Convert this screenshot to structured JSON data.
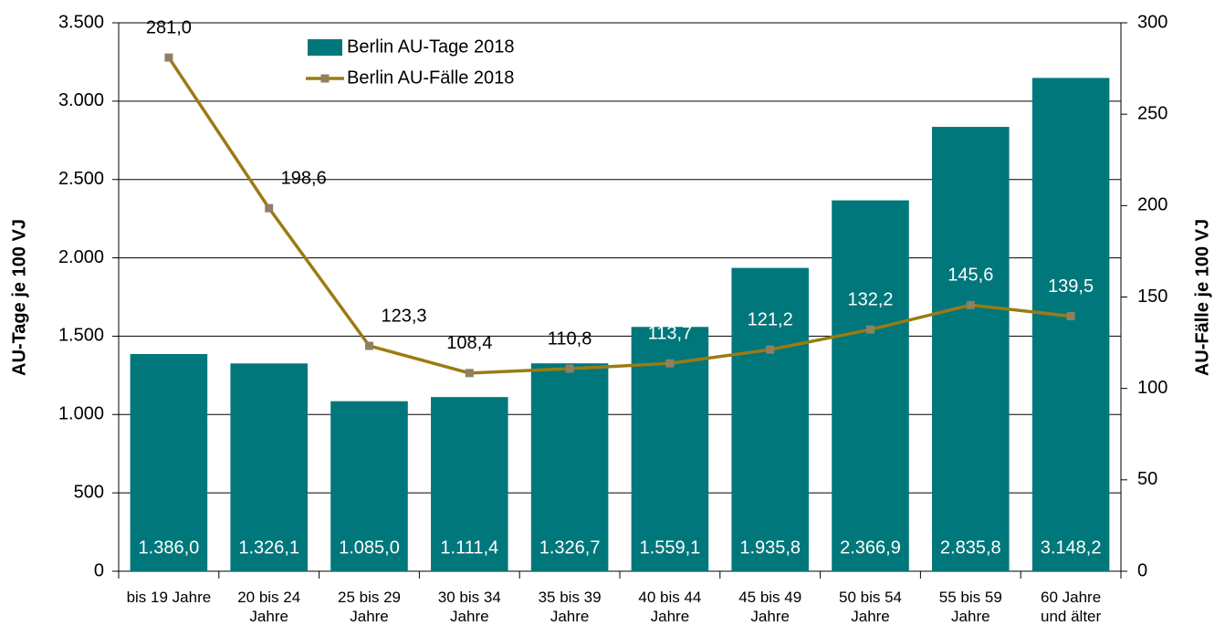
{
  "chart_data": {
    "type": "bar_line",
    "categories": [
      "bis 19 Jahre",
      "20 bis 24 Jahre",
      "25 bis 29 Jahre",
      "30 bis 34 Jahre",
      "35 bis 39 Jahre",
      "40 bis 44 Jahre",
      "45 bis 49 Jahre",
      "50 bis 54 Jahre",
      "55 bis 59 Jahre",
      "60 Jahre und älter"
    ],
    "series": [
      {
        "name": "Berlin AU-Tage 2018",
        "type": "bar",
        "color": "#00777b",
        "values": [
          1386.0,
          1326.1,
          1085.0,
          1111.4,
          1326.7,
          1559.1,
          1935.8,
          2366.9,
          2835.8,
          3148.2
        ],
        "value_labels": [
          "1.386,0",
          "1.326,1",
          "1.085,0",
          "1.111,4",
          "1.326,7",
          "1.559,1",
          "1.935,8",
          "2.366,9",
          "2.835,8",
          "3.148,2"
        ]
      },
      {
        "name": "Berlin AU-Fälle 2018",
        "type": "line",
        "axis": "y2",
        "color": "#9b7b12",
        "marker_color": "#8f8060",
        "values": [
          281.0,
          198.6,
          123.3,
          108.4,
          110.8,
          113.7,
          121.2,
          132.2,
          145.6,
          139.5
        ],
        "value_labels": [
          "281,0",
          "198,6",
          "123,3",
          "108,4",
          "110,8",
          "113,7",
          "121,2",
          "132,2",
          "145,6",
          "139,5"
        ]
      }
    ],
    "ylabel": "AU-Tage je 100 VJ",
    "y2label": "AU-Fälle je 100 VJ",
    "ylim": [
      0,
      3500
    ],
    "yticks": [
      0,
      500,
      {
        "value": 1000,
        "label": "1.000"
      },
      {
        "value": 1500,
        "label": "1.500"
      },
      {
        "value": 2000,
        "label": "2.000"
      },
      {
        "value": 2500,
        "label": "2.500"
      },
      {
        "value": 3000,
        "label": "3.000"
      },
      {
        "value": 3500,
        "label": "3.500"
      }
    ],
    "y2lim": [
      0,
      300
    ],
    "y2ticks": [
      0,
      50,
      100,
      150,
      200,
      250,
      300
    ],
    "grid": true,
    "legend": "top"
  }
}
